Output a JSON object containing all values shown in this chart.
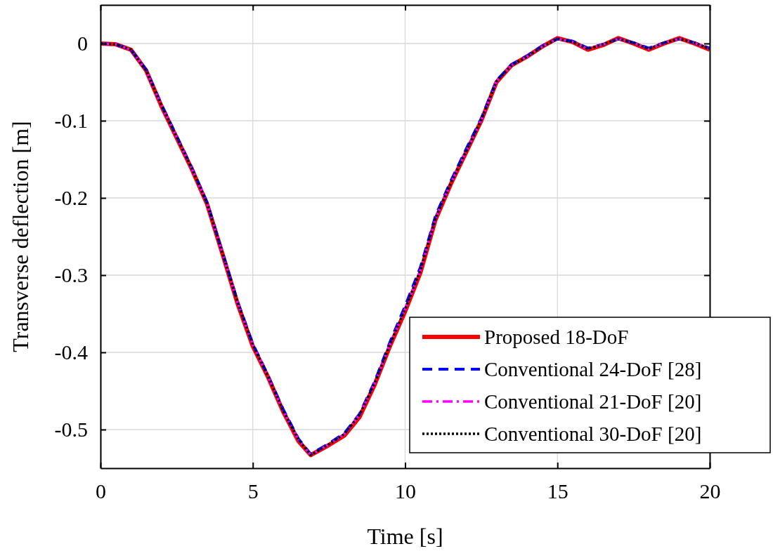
{
  "chart_data": {
    "type": "line",
    "xlabel": "Time [s]",
    "ylabel": "Transverse deflection [m]",
    "x": [
      0,
      0.5,
      1,
      1.5,
      2,
      2.5,
      3,
      3.5,
      4,
      4.5,
      5,
      5.5,
      6,
      6.5,
      6.9,
      7.5,
      8,
      8.5,
      9,
      9.5,
      10,
      10.5,
      11,
      11.5,
      12,
      12.5,
      13,
      13.5,
      14,
      14.5,
      15,
      15.5,
      16,
      16.5,
      17,
      17.5,
      18,
      18.5,
      19,
      19.5,
      20
    ],
    "series": [
      {
        "name": "Proposed 18-DoF",
        "color": "#ff0000",
        "line_style": "solid",
        "values": [
          0,
          -0.001,
          -0.008,
          -0.035,
          -0.081,
          -0.122,
          -0.163,
          -0.208,
          -0.272,
          -0.337,
          -0.392,
          -0.432,
          -0.477,
          -0.515,
          -0.533,
          -0.52,
          -0.508,
          -0.484,
          -0.442,
          -0.392,
          -0.347,
          -0.297,
          -0.228,
          -0.182,
          -0.141,
          -0.1,
          -0.05,
          -0.028,
          -0.017,
          -0.004,
          0.007,
          0.002,
          -0.008,
          -0.002,
          0.007,
          0,
          -0.008,
          0,
          0.007,
          0,
          -0.008
        ]
      },
      {
        "name": "Conventional 24-DoF [28]",
        "color": "#0000ff",
        "line_style": "dashed",
        "values": [
          0,
          -0.001,
          -0.008,
          -0.034,
          -0.079,
          -0.12,
          -0.161,
          -0.206,
          -0.27,
          -0.334,
          -0.389,
          -0.43,
          -0.474,
          -0.512,
          -0.532,
          -0.518,
          -0.505,
          -0.48,
          -0.438,
          -0.387,
          -0.34,
          -0.29,
          -0.223,
          -0.178,
          -0.137,
          -0.097,
          -0.048,
          -0.027,
          -0.016,
          -0.003,
          0.006,
          0.003,
          -0.006,
          -0.001,
          0.006,
          0.001,
          -0.006,
          0.001,
          0.006,
          0.001,
          -0.006
        ]
      },
      {
        "name": "Conventional 21-DoF [20]",
        "color": "#ff00ff",
        "line_style": "dashdot",
        "values": [
          0,
          -0.001,
          -0.008,
          -0.035,
          -0.08,
          -0.121,
          -0.162,
          -0.207,
          -0.271,
          -0.335,
          -0.39,
          -0.431,
          -0.476,
          -0.513,
          -0.533,
          -0.519,
          -0.506,
          -0.481,
          -0.44,
          -0.39,
          -0.344,
          -0.294,
          -0.226,
          -0.181,
          -0.14,
          -0.099,
          -0.049,
          -0.028,
          -0.017,
          -0.004,
          0.006,
          0.002,
          -0.007,
          -0.001,
          0.006,
          0.001,
          -0.007,
          0.001,
          0.006,
          0.001,
          -0.007
        ]
      },
      {
        "name": "Conventional 30-DoF [20]",
        "color": "#000000",
        "line_style": "dotted",
        "values": [
          0,
          -0.001,
          -0.008,
          -0.035,
          -0.08,
          -0.121,
          -0.162,
          -0.207,
          -0.271,
          -0.335,
          -0.39,
          -0.431,
          -0.476,
          -0.513,
          -0.533,
          -0.519,
          -0.506,
          -0.481,
          -0.44,
          -0.39,
          -0.344,
          -0.294,
          -0.226,
          -0.181,
          -0.14,
          -0.099,
          -0.049,
          -0.028,
          -0.017,
          -0.004,
          0.006,
          0.002,
          -0.007,
          -0.001,
          0.006,
          0.001,
          -0.007,
          0.001,
          0.006,
          0.001,
          -0.007
        ]
      }
    ],
    "xlim": [
      0,
      20
    ],
    "xticks": [
      0,
      5,
      10,
      15,
      20
    ],
    "ylim": [
      -0.55,
      0.05
    ],
    "yticks": [
      -0.5,
      -0.4,
      -0.3,
      -0.2,
      -0.1,
      0
    ],
    "grid": true,
    "legend": "bottom right"
  }
}
